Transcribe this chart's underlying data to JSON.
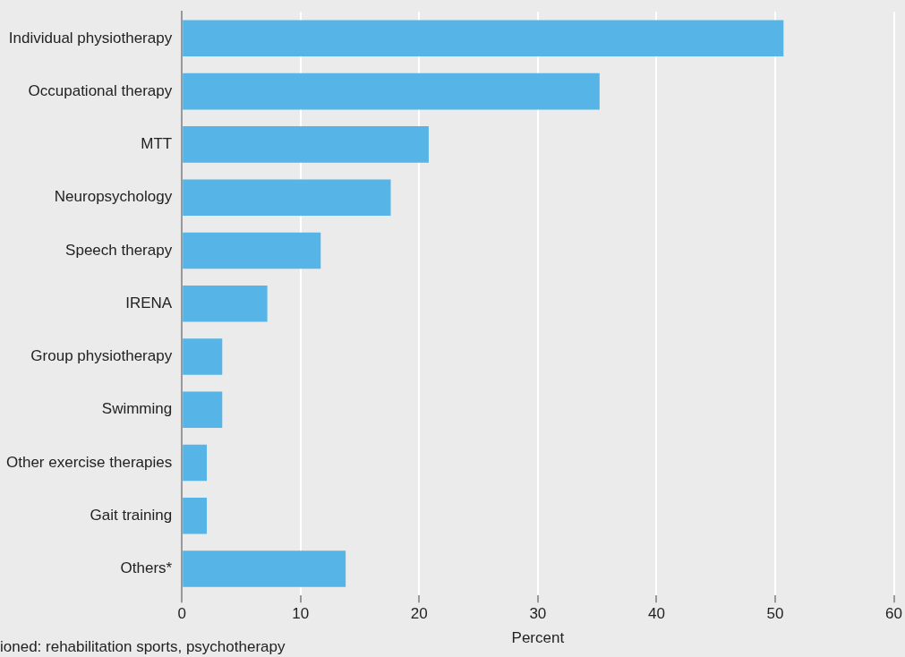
{
  "chart_data": {
    "type": "bar",
    "orientation": "horizontal",
    "categories": [
      "Individual physiotherapy",
      "Occupational therapy",
      "MTT",
      "Neuropsychology",
      "Speech therapy",
      "IRENA",
      "Group physiotherapy",
      "Swimming",
      "Other exercise therapies",
      "Gait training",
      "Others*"
    ],
    "values": [
      50.7,
      35.2,
      20.8,
      17.6,
      11.7,
      7.2,
      3.4,
      3.4,
      2.1,
      2.1,
      13.8
    ],
    "color": "#56b4e6",
    "xlim": [
      0,
      60
    ],
    "xticks": [
      0,
      10,
      20,
      30,
      40,
      50,
      60
    ],
    "grid": "x",
    "legend": false,
    "xlabel": "Percent",
    "annotations": [
      "ioned: rehabilitation sports, psychotherapy"
    ]
  }
}
